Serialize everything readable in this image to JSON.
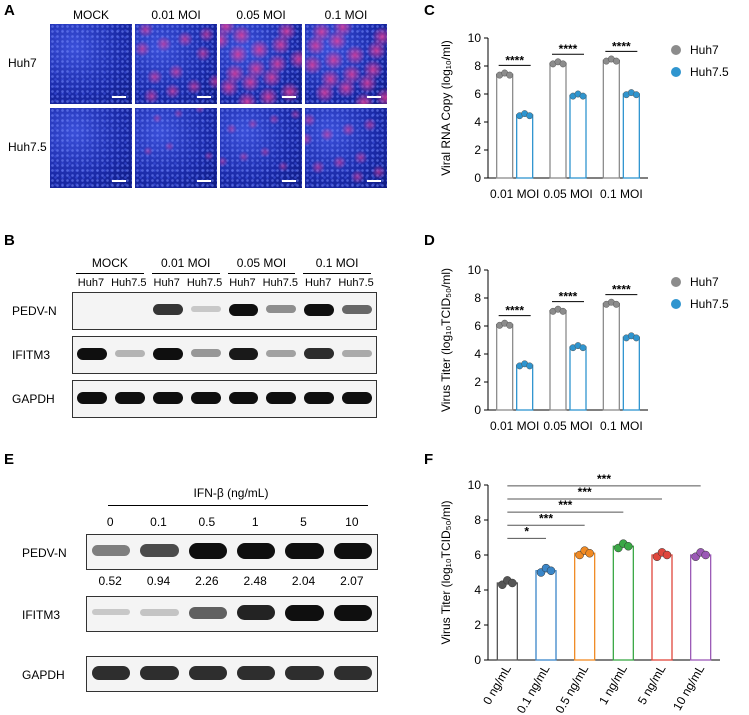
{
  "panelA": {
    "letter": "A",
    "cols": [
      "MOCK",
      "0.01 MOI",
      "0.05 MOI",
      "0.1 MOI"
    ],
    "rows": [
      "Huh7",
      "Huh7.5"
    ],
    "red_level": [
      [
        0,
        0.6,
        0.9,
        0.9
      ],
      [
        0,
        0.15,
        0.25,
        0.45
      ]
    ]
  },
  "panelB": {
    "letter": "B",
    "groups": [
      "MOCK",
      "0.01 MOI",
      "0.05 MOI",
      "0.1 MOI"
    ],
    "lanes": [
      "Huh7",
      "Huh7.5",
      "Huh7",
      "Huh7.5",
      "Huh7",
      "Huh7.5",
      "Huh7",
      "Huh7.5"
    ],
    "blots": [
      {
        "label": "PEDV-N",
        "intensity": [
          0,
          0,
          0.8,
          0.05,
          1,
          0.35,
          1,
          0.55
        ]
      },
      {
        "label": "IFITM3",
        "intensity": [
          1,
          0.15,
          1,
          0.3,
          0.95,
          0.25,
          0.85,
          0.2
        ]
      },
      {
        "label": "GAPDH",
        "intensity": [
          1,
          1,
          1,
          1,
          1,
          1,
          1,
          1
        ]
      }
    ]
  },
  "panelE": {
    "letter": "E",
    "treatment": "IFN-β (ng/mL)",
    "doses": [
      "0",
      "0.1",
      "0.5",
      "1",
      "5",
      "10"
    ],
    "quant": [
      "0.52",
      "0.94",
      "2.26",
      "2.48",
      "2.04",
      "2.07"
    ],
    "blots": [
      {
        "label": "PEDV-N",
        "intensity": [
          0.45,
          0.7,
          1,
          1,
          1,
          1
        ]
      },
      {
        "label": "IFITM3",
        "intensity": [
          0.08,
          0.1,
          0.6,
          0.9,
          1,
          1
        ]
      },
      {
        "label": "GAPDH",
        "intensity": [
          0.85,
          0.85,
          0.85,
          0.85,
          0.85,
          0.85
        ]
      }
    ]
  },
  "chart_data": [
    {
      "id": "C",
      "type": "bar",
      "letter": "C",
      "categories": [
        "0.01 MOI",
        "0.05 MOI",
        "0.1 MOI"
      ],
      "ylabel": "Viral RNA Copy (log₁₀/ml)",
      "ylim": [
        0,
        10
      ],
      "yticks": [
        0,
        2,
        4,
        6,
        8,
        10
      ],
      "series": [
        {
          "name": "Huh7",
          "values": [
            7.4,
            8.2,
            8.4
          ],
          "color": "#8c8c8c"
        },
        {
          "name": "Huh7.5",
          "values": [
            4.5,
            5.9,
            6.0
          ],
          "color": "#2f95cf"
        }
      ],
      "significance": [
        "****",
        "****",
        "****"
      ],
      "legend": "right"
    },
    {
      "id": "D",
      "type": "bar",
      "letter": "D",
      "categories": [
        "0.01 MOI",
        "0.05 MOI",
        "0.1 MOI"
      ],
      "ylabel": "Virus Titer (log₁₀TCID₅₀/ml)",
      "ylim": [
        0,
        10
      ],
      "yticks": [
        0,
        2,
        4,
        6,
        8,
        10
      ],
      "series": [
        {
          "name": "Huh7",
          "values": [
            6.1,
            7.1,
            7.6
          ],
          "color": "#8c8c8c"
        },
        {
          "name": "Huh7.5",
          "values": [
            3.2,
            4.5,
            5.2
          ],
          "color": "#2f95cf"
        }
      ],
      "significance": [
        "****",
        "****",
        "****"
      ],
      "legend": "right"
    },
    {
      "id": "F",
      "type": "bar",
      "letter": "F",
      "categories": [
        "0 ng/mL",
        "0.1 ng/mL",
        "0.5 ng/mL",
        "1 ng/mL",
        "5 ng/mL",
        "10 ng/mL"
      ],
      "ylabel": "Virus Titer (log₁₀TCID₅₀/ml)",
      "ylim": [
        0,
        10
      ],
      "yticks": [
        0,
        2,
        4,
        6,
        8,
        10
      ],
      "values": [
        4.4,
        5.1,
        6.1,
        6.5,
        6.0,
        6.0
      ],
      "colors": [
        "#555555",
        "#3a86c8",
        "#f08a24",
        "#3aa845",
        "#e0463c",
        "#9b59b6"
      ],
      "comparisons": [
        {
          "from": 0,
          "to": 1,
          "label": "*"
        },
        {
          "from": 0,
          "to": 2,
          "label": "***"
        },
        {
          "from": 0,
          "to": 3,
          "label": "***"
        },
        {
          "from": 0,
          "to": 4,
          "label": "***"
        },
        {
          "from": 0,
          "to": 5,
          "label": "***"
        }
      ]
    }
  ]
}
